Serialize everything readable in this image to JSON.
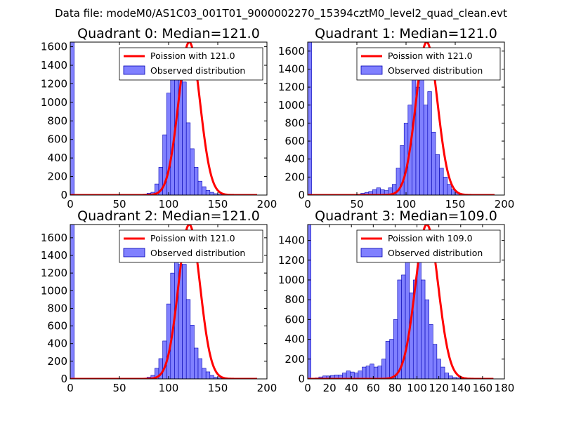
{
  "figure_title": "Data file: modeM0/AS1C03_001T01_9000002270_15394cztM0_level2_quad_clean.evt",
  "colors": {
    "poisson": "#ff0000",
    "hist_fill": "#8080ff",
    "hist_edge": "#0000b4"
  },
  "chart_data": [
    {
      "type": "bar",
      "title": "Quadrant 0: Median=121.0",
      "xlim": [
        0,
        200
      ],
      "ylim": [
        0,
        1650
      ],
      "xticks": [
        0,
        50,
        100,
        150,
        200
      ],
      "yticks": [
        0,
        200,
        400,
        600,
        800,
        1000,
        1200,
        1400,
        1600
      ],
      "legend": {
        "placement": "top-right",
        "line_label": "Poission with 121.0",
        "bar_label": "Observed distribution"
      },
      "series": [
        {
          "name": "Observed distribution",
          "bin_edges": [
            0,
            4
          ],
          "values": [
            1650
          ]
        },
        {
          "name": "Observed distribution",
          "bin_start": 74,
          "bin_width": 4,
          "values": [
            10,
            20,
            30,
            120,
            300,
            650,
            1100,
            1290,
            1250,
            1300,
            1220,
            780,
            500,
            300,
            150,
            90,
            50,
            30,
            15,
            10,
            5,
            2,
            1,
            0,
            1,
            1
          ]
        },
        {
          "name": "Poission with 121.0",
          "mu": 121.0,
          "peak": 1650,
          "x_range": [
            0,
            190
          ]
        }
      ]
    },
    {
      "type": "bar",
      "title": "Quadrant 1: Median=121.0",
      "xlim": [
        0,
        200
      ],
      "ylim": [
        0,
        1700
      ],
      "xticks": [
        0,
        50,
        100,
        150,
        200
      ],
      "yticks": [
        0,
        200,
        400,
        600,
        800,
        1000,
        1200,
        1400,
        1600
      ],
      "legend": {
        "placement": "top-right",
        "line_label": "Poission with 121.0",
        "bar_label": "Observed distribution"
      },
      "series": [
        {
          "name": "Observed distribution",
          "bin_edges": [
            0,
            4
          ],
          "values": [
            1700
          ]
        },
        {
          "name": "Observed distribution",
          "bin_start": 50,
          "bin_width": 4,
          "values": [
            10,
            20,
            30,
            40,
            60,
            80,
            60,
            50,
            80,
            120,
            300,
            550,
            800,
            1000,
            1300,
            1200,
            1400,
            1000,
            1150,
            700,
            450,
            300,
            200,
            120,
            60,
            30,
            15,
            5
          ]
        },
        {
          "name": "Poission with 121.0",
          "mu": 121.0,
          "peak": 1700,
          "x_range": [
            0,
            190
          ]
        }
      ]
    },
    {
      "type": "bar",
      "title": "Quadrant 2: Median=121.0",
      "xlim": [
        0,
        200
      ],
      "ylim": [
        0,
        1750
      ],
      "xticks": [
        0,
        50,
        100,
        150,
        200
      ],
      "yticks": [
        0,
        200,
        400,
        600,
        800,
        1000,
        1200,
        1400,
        1600
      ],
      "legend": {
        "placement": "top-right",
        "line_label": "Poission with 121.0",
        "bar_label": "Observed distribution"
      },
      "series": [
        {
          "name": "Observed distribution",
          "bin_edges": [
            0,
            4
          ],
          "values": [
            1750
          ]
        },
        {
          "name": "Observed distribution",
          "bin_start": 74,
          "bin_width": 4,
          "values": [
            10,
            20,
            40,
            120,
            230,
            430,
            850,
            1200,
            1450,
            1300,
            1300,
            900,
            610,
            350,
            230,
            120,
            80,
            40,
            20,
            10,
            5,
            2
          ]
        },
        {
          "name": "Poission with 121.0",
          "mu": 121.0,
          "peak": 1750,
          "x_range": [
            0,
            190
          ]
        }
      ]
    },
    {
      "type": "bar",
      "title": "Quadrant 3: Median=109.0",
      "xlim": [
        0,
        180
      ],
      "ylim": [
        0,
        1560
      ],
      "xticks": [
        0,
        20,
        40,
        60,
        80,
        100,
        120,
        140,
        160,
        180
      ],
      "yticks": [
        0,
        200,
        400,
        600,
        800,
        1000,
        1200,
        1400
      ],
      "legend": {
        "placement": "top-right",
        "line_label": "Poission with 109.0",
        "bar_label": "Observed distribution"
      },
      "series": [
        {
          "name": "Observed distribution",
          "bin_edges": [
            0,
            3
          ],
          "values": [
            1560
          ]
        },
        {
          "name": "Observed distribution",
          "bin_start": 3,
          "bin_width": 3.6,
          "values": [
            5,
            10,
            20,
            30,
            30,
            35,
            40,
            40,
            60,
            80,
            70,
            60,
            80,
            120,
            130,
            150,
            120,
            130,
            200,
            380,
            400,
            600,
            1000,
            1050,
            1190,
            870,
            1000,
            1200,
            1000,
            800,
            550,
            350,
            200,
            120,
            60,
            30,
            15,
            10,
            5,
            5,
            2
          ]
        },
        {
          "name": "Poission with 109.0",
          "mu": 109.0,
          "peak": 1560,
          "x_range": [
            0,
            170
          ]
        }
      ]
    }
  ]
}
